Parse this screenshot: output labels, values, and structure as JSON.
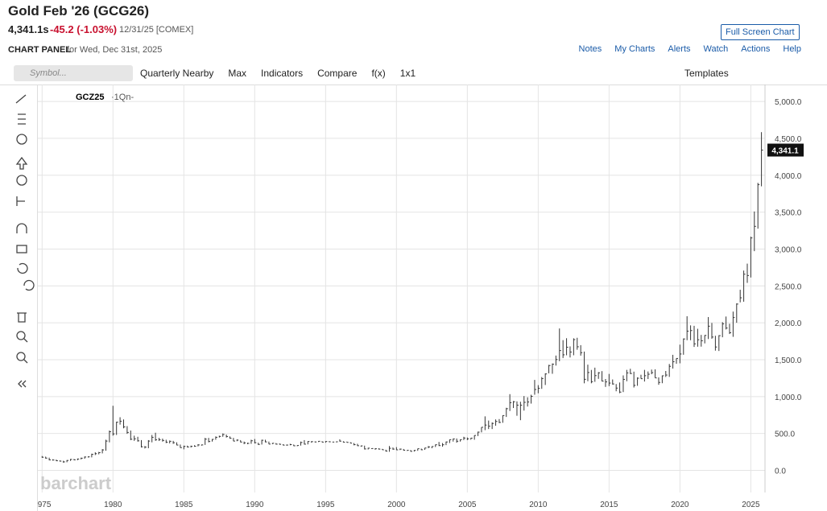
{
  "header": {
    "title": "Gold Feb '26 (GCG26)",
    "price": "4,341.1s",
    "change": "-45.2 (-1.03%)",
    "date": "12/31/25 [COMEX]",
    "full_screen": "Full Screen Chart",
    "panel_label": "CHART PANEL",
    "panel_date": "for Wed, Dec 31st, 2025",
    "nav": [
      "Notes",
      "My Charts",
      "Alerts",
      "Watch",
      "Actions",
      "Help"
    ]
  },
  "toolbar": {
    "symbol_placeholder": "Symbol...",
    "items": [
      "Quarterly Nearby",
      "Max",
      "Indicators",
      "Compare",
      "f(x)",
      "1x1"
    ],
    "templates": "Templates"
  },
  "watermark": "barchart",
  "chart_data": {
    "type": "hlc",
    "symbol": "GCZ25",
    "symbol_suffix": "·1Qn-",
    "color": "#333333",
    "xlim": [
      1974.7,
      2026.0
    ],
    "xticks": [
      1975,
      1980,
      1985,
      1990,
      1995,
      2000,
      2005,
      2010,
      2015,
      2020,
      2025
    ],
    "ylim": [
      -300,
      5230
    ],
    "yticks": [
      {
        "value": 0,
        "label": "0.0"
      },
      {
        "value": 500,
        "label": "500.0"
      },
      {
        "value": 1000,
        "label": "1,000.0"
      },
      {
        "value": 1500,
        "label": "1,500.0"
      },
      {
        "value": 2000,
        "label": "2,000.0"
      },
      {
        "value": 2500,
        "label": "2,500.0"
      },
      {
        "value": 3000,
        "label": "3,000.0"
      },
      {
        "value": 3500,
        "label": "3,500.0"
      },
      {
        "value": 4000,
        "label": "4,000.0"
      },
      {
        "value": 4500,
        "label": "4,500.0"
      },
      {
        "value": 5000,
        "label": "5,000.0"
      }
    ],
    "grid": true,
    "last_price": {
      "value": 4341.1,
      "label": "4,341.1"
    },
    "x": [
      1975,
      1975.25,
      1975.5,
      1975.75,
      1976,
      1976.25,
      1976.5,
      1976.75,
      1977,
      1977.25,
      1977.5,
      1977.75,
      1978,
      1978.25,
      1978.5,
      1978.75,
      1979,
      1979.25,
      1979.5,
      1979.75,
      1980,
      1980.25,
      1980.5,
      1980.75,
      1981,
      1981.25,
      1981.5,
      1981.75,
      1982,
      1982.25,
      1982.5,
      1982.75,
      1983,
      1983.25,
      1983.5,
      1983.75,
      1984,
      1984.25,
      1984.5,
      1984.75,
      1985,
      1985.25,
      1985.5,
      1985.75,
      1986,
      1986.25,
      1986.5,
      1986.75,
      1987,
      1987.25,
      1987.5,
      1987.75,
      1988,
      1988.25,
      1988.5,
      1988.75,
      1989,
      1989.25,
      1989.5,
      1989.75,
      1990,
      1990.25,
      1990.5,
      1990.75,
      1991,
      1991.25,
      1991.5,
      1991.75,
      1992,
      1992.25,
      1992.5,
      1992.75,
      1993,
      1993.25,
      1993.5,
      1993.75,
      1994,
      1994.25,
      1994.5,
      1994.75,
      1995,
      1995.25,
      1995.5,
      1995.75,
      1996,
      1996.25,
      1996.5,
      1996.75,
      1997,
      1997.25,
      1997.5,
      1997.75,
      1998,
      1998.25,
      1998.5,
      1998.75,
      1999,
      1999.25,
      1999.5,
      1999.75,
      2000,
      2000.25,
      2000.5,
      2000.75,
      2001,
      2001.25,
      2001.5,
      2001.75,
      2002,
      2002.25,
      2002.5,
      2002.75,
      2003,
      2003.25,
      2003.5,
      2003.75,
      2004,
      2004.25,
      2004.5,
      2004.75,
      2005,
      2005.25,
      2005.5,
      2005.75,
      2006,
      2006.25,
      2006.5,
      2006.75,
      2007,
      2007.25,
      2007.5,
      2007.75,
      2008,
      2008.25,
      2008.5,
      2008.75,
      2009,
      2009.25,
      2009.5,
      2009.75,
      2010,
      2010.25,
      2010.5,
      2010.75,
      2011,
      2011.25,
      2011.5,
      2011.75,
      2012,
      2012.25,
      2012.5,
      2012.75,
      2013,
      2013.25,
      2013.5,
      2013.75,
      2014,
      2014.25,
      2014.5,
      2014.75,
      2015,
      2015.25,
      2015.5,
      2015.75,
      2016,
      2016.25,
      2016.5,
      2016.75,
      2017,
      2017.25,
      2017.5,
      2017.75,
      2018,
      2018.25,
      2018.5,
      2018.75,
      2019,
      2019.25,
      2019.5,
      2019.75,
      2020,
      2020.25,
      2020.5,
      2020.75,
      2021,
      2021.25,
      2021.5,
      2021.75,
      2022,
      2022.25,
      2022.5,
      2022.75,
      2023,
      2023.25,
      2023.5,
      2023.75,
      2024,
      2024.25,
      2024.5,
      2024.75,
      2025,
      2025.25,
      2025.5,
      2025.75
    ],
    "high": [
      194,
      186,
      172,
      150,
      146,
      135,
      130,
      139,
      154,
      154,
      160,
      172,
      188,
      190,
      226,
      245,
      250,
      288,
      415,
      540,
      875,
      660,
      720,
      690,
      600,
      540,
      470,
      455,
      410,
      330,
      410,
      480,
      510,
      440,
      430,
      415,
      405,
      400,
      380,
      350,
      335,
      335,
      335,
      340,
      355,
      350,
      440,
      440,
      425,
      460,
      470,
      500,
      485,
      460,
      440,
      420,
      410,
      390,
      375,
      415,
      425,
      375,
      415,
      415,
      390,
      370,
      370,
      365,
      355,
      350,
      360,
      350,
      340,
      390,
      410,
      395,
      395,
      392,
      397,
      395,
      395,
      395,
      388,
      390,
      420,
      395,
      390,
      382,
      370,
      360,
      335,
      335,
      305,
      300,
      300,
      300,
      291,
      280,
      330,
      310,
      315,
      295,
      290,
      272,
      275,
      275,
      294,
      295,
      305,
      330,
      324,
      350,
      385,
      370,
      390,
      417,
      430,
      432,
      418,
      455,
      445,
      440,
      475,
      525,
      585,
      732,
      675,
      650,
      690,
      695,
      745,
      848,
      1033,
      940,
      935,
      930,
      1007,
      990,
      1025,
      1226,
      1155,
      1265,
      1315,
      1430,
      1449,
      1556,
      1923,
      1765,
      1791,
      1680,
      1790,
      1797,
      1697,
      1610,
      1433,
      1361,
      1392,
      1332,
      1345,
      1238,
      1307,
      1232,
      1170,
      1191,
      1287,
      1362,
      1377,
      1338,
      1261,
      1296,
      1362,
      1340,
      1366,
      1369,
      1260,
      1286,
      1347,
      1442,
      1566,
      1519,
      1704,
      1788,
      2089,
      1965,
      1959,
      1919,
      1836,
      1833,
      2078,
      1998,
      1824,
      1832,
      2009,
      2085,
      1987,
      2152,
      2264,
      2448,
      2708,
      2802,
      3167,
      3509,
      3897,
      4584
    ],
    "low": [
      171,
      159,
      136,
      133,
      125,
      120,
      104,
      110,
      129,
      137,
      137,
      148,
      158,
      174,
      176,
      208,
      217,
      230,
      266,
      380,
      470,
      480,
      620,
      570,
      495,
      410,
      400,
      390,
      310,
      297,
      300,
      380,
      400,
      400,
      390,
      370,
      365,
      360,
      340,
      305,
      285,
      310,
      310,
      320,
      325,
      335,
      345,
      380,
      390,
      415,
      445,
      455,
      445,
      430,
      395,
      395,
      380,
      355,
      355,
      360,
      365,
      345,
      350,
      380,
      355,
      355,
      350,
      350,
      340,
      335,
      340,
      330,
      327,
      336,
      350,
      352,
      375,
      380,
      384,
      382,
      375,
      383,
      382,
      381,
      390,
      380,
      378,
      368,
      340,
      330,
      320,
      283,
      283,
      290,
      280,
      283,
      278,
      255,
      252,
      280,
      275,
      275,
      270,
      264,
      255,
      255,
      265,
      275,
      278,
      300,
      300,
      317,
      330,
      321,
      342,
      370,
      390,
      375,
      390,
      410,
      410,
      415,
      415,
      465,
      515,
      545,
      560,
      560,
      605,
      640,
      645,
      724,
      805,
      845,
      740,
      680,
      810,
      865,
      905,
      1025,
      1045,
      1105,
      1157,
      1315,
      1309,
      1420,
      1480,
      1523,
      1560,
      1530,
      1560,
      1635,
      1555,
      1180,
      1208,
      1180,
      1200,
      1240,
      1205,
      1131,
      1142,
      1162,
      1072,
      1046,
      1061,
      1208,
      1306,
      1123,
      1146,
      1242,
      1204,
      1238,
      1303,
      1253,
      1160,
      1181,
      1266,
      1267,
      1380,
      1445,
      1451,
      1567,
      1764,
      1764,
      1673,
      1676,
      1677,
      1721,
      1780,
      1784,
      1623,
      1618,
      1804,
      1910,
      1848,
      1810,
      2001,
      2277,
      2286,
      2541,
      2614,
      2971,
      3276,
      3850
    ],
    "close": [
      178,
      166,
      142,
      140,
      130,
      125,
      115,
      134,
      148,
      143,
      154,
      165,
      181,
      183,
      217,
      226,
      240,
      277,
      397,
      524,
      494,
      653,
      666,
      589,
      514,
      422,
      428,
      400,
      320,
      315,
      397,
      448,
      414,
      416,
      405,
      382,
      394,
      375,
      343,
      308,
      325,
      317,
      325,
      327,
      345,
      345,
      423,
      391,
      420,
      448,
      460,
      486,
      458,
      436,
      397,
      410,
      384,
      373,
      366,
      401,
      375,
      352,
      408,
      386,
      356,
      367,
      355,
      353,
      342,
      343,
      349,
      333,
      337,
      378,
      355,
      391,
      389,
      385,
      394,
      383,
      391,
      387,
      384,
      387,
      396,
      382,
      379,
      369,
      348,
      334,
      332,
      290,
      301,
      296,
      293,
      288,
      279,
      261,
      299,
      288,
      278,
      288,
      273,
      272,
      258,
      270,
      293,
      279,
      303,
      318,
      323,
      347,
      336,
      347,
      385,
      416,
      426,
      395,
      416,
      438,
      428,
      437,
      473,
      518,
      584,
      614,
      599,
      636,
      663,
      650,
      743,
      836,
      917,
      930,
      884,
      884,
      922,
      927,
      1003,
      1096,
      1113,
      1244,
      1307,
      1421,
      1439,
      1502,
      1624,
      1566,
      1669,
      1604,
      1772,
      1675,
      1595,
      1234,
      1326,
      1202,
      1284,
      1322,
      1210,
      1199,
      1183,
      1171,
      1115,
      1061,
      1233,
      1321,
      1313,
      1152,
      1249,
      1242,
      1283,
      1303,
      1325,
      1253,
      1192,
      1282,
      1292,
      1410,
      1472,
      1517,
      1577,
      1781,
      1887,
      1895,
      1715,
      1770,
      1757,
      1829,
      1954,
      1807,
      1672,
      1826,
      1986,
      1929,
      1866,
      2071,
      2254,
      2339,
      2659,
      2641,
      3150,
      3307,
      3873,
      4341.1
    ]
  }
}
